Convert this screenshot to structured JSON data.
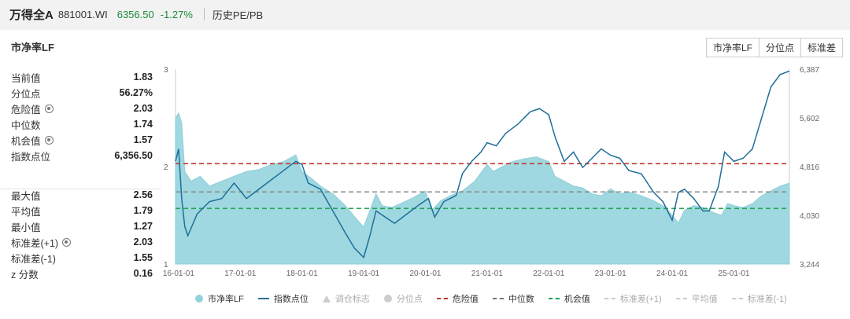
{
  "header": {
    "name": "万得全A",
    "code": "881001.WI",
    "price": "6356.50",
    "change": "-1.27%",
    "history_label": "历史PE/PB"
  },
  "panel": {
    "title": "市净率LF",
    "tabs": [
      {
        "label": "市净率LF",
        "active": true
      },
      {
        "label": "分位点",
        "active": false
      },
      {
        "label": "标准差",
        "active": false
      }
    ]
  },
  "stats_top": [
    {
      "label": "当前值",
      "value": "1.83",
      "gear": false
    },
    {
      "label": "分位点",
      "value": "56.27%",
      "gear": false
    },
    {
      "label": "危险值",
      "value": "2.03",
      "gear": true
    },
    {
      "label": "中位数",
      "value": "1.74",
      "gear": false
    },
    {
      "label": "机会值",
      "value": "1.57",
      "gear": true
    },
    {
      "label": "指数点位",
      "value": "6,356.50",
      "gear": false
    }
  ],
  "stats_bottom": [
    {
      "label": "最大值",
      "value": "2.56",
      "gear": false
    },
    {
      "label": "平均值",
      "value": "1.79",
      "gear": false
    },
    {
      "label": "最小值",
      "value": "1.27",
      "gear": false
    },
    {
      "label": "标准差(+1)",
      "value": "2.03",
      "gear": true
    },
    {
      "label": "标准差(-1)",
      "value": "1.55",
      "gear": false
    },
    {
      "label": "z 分数",
      "value": "0.16",
      "gear": false
    }
  ],
  "legend": [
    {
      "label": "市净率LF",
      "type": "dot",
      "color": "#8fd3dc",
      "dim": false
    },
    {
      "label": "指数点位",
      "type": "line",
      "color": "#2b6f9a",
      "dim": false
    },
    {
      "label": "调仓标志",
      "type": "tri",
      "color": "#cccccc",
      "dim": true
    },
    {
      "label": "分位点",
      "type": "dot",
      "color": "#cccccc",
      "dim": true
    },
    {
      "label": "危险值",
      "type": "dash",
      "color": "#c0392b",
      "dim": false
    },
    {
      "label": "中位数",
      "type": "dash",
      "color": "#777777",
      "dim": false
    },
    {
      "label": "机会值",
      "type": "dash",
      "color": "#27a35a",
      "dim": false
    },
    {
      "label": "标准差(+1)",
      "type": "dash",
      "color": "#cccccc",
      "dim": true
    },
    {
      "label": "平均值",
      "type": "dash",
      "color": "#cccccc",
      "dim": true
    },
    {
      "label": "标准差(-1)",
      "type": "dash",
      "color": "#cccccc",
      "dim": true
    }
  ],
  "colors": {
    "area_fill": "#9fd8e0",
    "index_line": "#1f6f99",
    "danger": "#c0392b",
    "median": "#888888",
    "opportunity": "#27a35a",
    "accent": "#1a9fbf"
  },
  "chart_data": {
    "type": "area",
    "x_tick_labels": [
      "16-01-01",
      "17-01-01",
      "18-01-01",
      "19-01-01",
      "20-01-01",
      "21-01-01",
      "22-01-01",
      "23-01-01",
      "24-01-01",
      "25-01-01"
    ],
    "x_range": [
      2015.95,
      2025.9
    ],
    "y_left_ticks": [
      "1",
      "2",
      "3"
    ],
    "y_left_range": [
      1,
      3
    ],
    "y_right_ticks": [
      "3,244",
      "4,030",
      "4,816",
      "5,602",
      "6,387"
    ],
    "y_right_range": [
      3244,
      6387
    ],
    "reference_lines": {
      "danger": 2.03,
      "median": 1.74,
      "opportunity": 1.57
    },
    "series": [
      {
        "name": "市净率LF",
        "axis": "left",
        "x": [
          2015.95,
          2016.0,
          2016.05,
          2016.1,
          2016.2,
          2016.35,
          2016.5,
          2016.7,
          2016.9,
          2017.1,
          2017.3,
          2017.5,
          2017.7,
          2017.9,
          2018.0,
          2018.15,
          2018.3,
          2018.5,
          2018.7,
          2018.9,
          2019.0,
          2019.1,
          2019.2,
          2019.3,
          2019.45,
          2019.6,
          2019.8,
          2020.0,
          2020.1,
          2020.25,
          2020.4,
          2020.6,
          2020.8,
          2021.0,
          2021.1,
          2021.25,
          2021.4,
          2021.6,
          2021.8,
          2022.0,
          2022.1,
          2022.25,
          2022.4,
          2022.55,
          2022.7,
          2022.85,
          2023.0,
          2023.15,
          2023.3,
          2023.5,
          2023.7,
          2023.9,
          2024.0,
          2024.1,
          2024.2,
          2024.35,
          2024.5,
          2024.6,
          2024.7,
          2024.8,
          2024.9,
          2025.0,
          2025.15,
          2025.3,
          2025.45,
          2025.6,
          2025.75,
          2025.9
        ],
        "y": [
          2.5,
          2.55,
          2.45,
          1.95,
          1.85,
          1.9,
          1.8,
          1.85,
          1.9,
          1.95,
          1.97,
          2.02,
          2.05,
          2.12,
          1.95,
          1.88,
          1.8,
          1.72,
          1.6,
          1.45,
          1.38,
          1.55,
          1.72,
          1.6,
          1.58,
          1.62,
          1.68,
          1.75,
          1.55,
          1.65,
          1.7,
          1.75,
          1.85,
          2.02,
          1.95,
          2.0,
          2.05,
          2.08,
          2.1,
          2.05,
          1.9,
          1.85,
          1.8,
          1.78,
          1.72,
          1.7,
          1.77,
          1.72,
          1.74,
          1.7,
          1.65,
          1.58,
          1.5,
          1.42,
          1.55,
          1.6,
          1.58,
          1.55,
          1.52,
          1.5,
          1.62,
          1.6,
          1.58,
          1.62,
          1.7,
          1.75,
          1.8,
          1.83
        ]
      },
      {
        "name": "指数点位",
        "axis": "right",
        "x": [
          2015.95,
          2016.0,
          2016.05,
          2016.1,
          2016.15,
          2016.3,
          2016.5,
          2016.7,
          2016.9,
          2017.1,
          2017.3,
          2017.5,
          2017.7,
          2017.9,
          2018.0,
          2018.1,
          2018.3,
          2018.5,
          2018.7,
          2018.85,
          2019.0,
          2019.1,
          2019.2,
          2019.35,
          2019.5,
          2019.7,
          2019.9,
          2020.05,
          2020.15,
          2020.3,
          2020.5,
          2020.6,
          2020.75,
          2020.9,
          2021.0,
          2021.15,
          2021.3,
          2021.5,
          2021.7,
          2021.85,
          2022.0,
          2022.1,
          2022.25,
          2022.4,
          2022.55,
          2022.7,
          2022.85,
          2023.0,
          2023.15,
          2023.3,
          2023.5,
          2023.7,
          2023.85,
          2024.0,
          2024.1,
          2024.2,
          2024.35,
          2024.5,
          2024.6,
          2024.75,
          2024.85,
          2025.0,
          2025.15,
          2025.3,
          2025.45,
          2025.6,
          2025.75,
          2025.9
        ],
        "y": [
          4900,
          5100,
          4300,
          3850,
          3700,
          4050,
          4250,
          4300,
          4550,
          4300,
          4450,
          4600,
          4750,
          4900,
          4850,
          4550,
          4450,
          4100,
          3750,
          3500,
          3350,
          3700,
          4100,
          4000,
          3900,
          4050,
          4200,
          4300,
          4000,
          4250,
          4350,
          4700,
          4900,
          5050,
          5200,
          5150,
          5350,
          5500,
          5700,
          5750,
          5650,
          5300,
          4900,
          5050,
          4800,
          4950,
          5100,
          5000,
          4950,
          4750,
          4700,
          4400,
          4250,
          3950,
          4400,
          4450,
          4300,
          4100,
          4100,
          4500,
          5050,
          4900,
          4950,
          5100,
          5600,
          6100,
          6300,
          6356
        ]
      }
    ]
  }
}
